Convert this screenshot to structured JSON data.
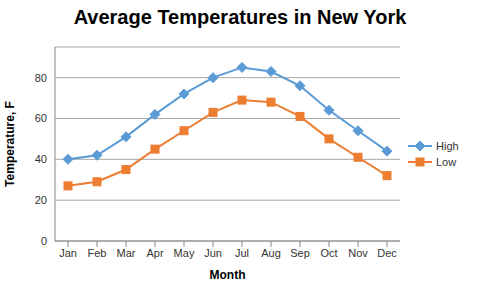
{
  "chart_data": {
    "type": "line",
    "title": "Average Temperatures in New York",
    "x_label": "Month",
    "y_label": "Temperature, F",
    "categories": [
      "Jan",
      "Feb",
      "Mar",
      "Apr",
      "May",
      "Jun",
      "Jul",
      "Aug",
      "Sep",
      "Oct",
      "Nov",
      "Dec"
    ],
    "series": [
      {
        "name": "High",
        "color": "#5b9bd5",
        "marker": "diamond",
        "values": [
          40,
          42,
          51,
          62,
          72,
          80,
          85,
          83,
          76,
          64,
          54,
          44
        ]
      },
      {
        "name": "Low",
        "color": "#ed7d31",
        "marker": "square",
        "values": [
          27,
          29,
          35,
          45,
          54,
          63,
          69,
          68,
          61,
          50,
          41,
          32
        ]
      }
    ],
    "ylim": [
      0,
      95
    ],
    "yticks": [
      0,
      20,
      40,
      60,
      80
    ],
    "grid": true,
    "legend": "right"
  }
}
